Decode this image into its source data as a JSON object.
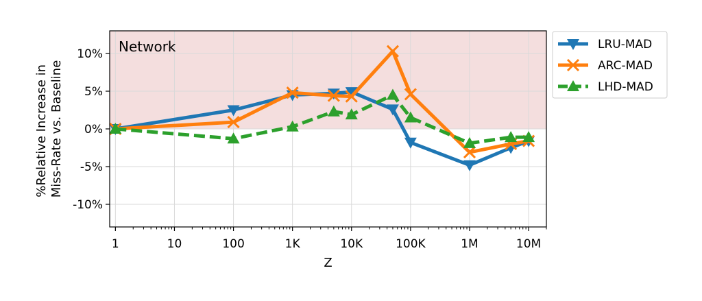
{
  "chart_data": {
    "type": "line",
    "xlabel": "Z",
    "ylabel_lines": [
      "%Relative Increase in",
      "Miss-Rate vs. Baseline"
    ],
    "annotation": "Network",
    "x_scale": "log",
    "xlim": [
      0.8,
      20000000
    ],
    "ylim": [
      -13,
      13
    ],
    "x_ticks": [
      1,
      10,
      100,
      1000,
      10000,
      100000,
      1000000,
      10000000
    ],
    "x_tick_labels": [
      "1",
      "10",
      "100",
      "1K",
      "10K",
      "100K",
      "1M",
      "10M"
    ],
    "y_ticks": [
      10,
      5,
      0,
      -5,
      -10
    ],
    "y_tick_labels": [
      "10%",
      "5%",
      "0%",
      "-5%",
      "-10%"
    ],
    "grid": true,
    "shaded_region": {
      "from": 0,
      "to": 13,
      "color": "#f4dede"
    },
    "legend_position": "outside-right",
    "series": [
      {
        "name": "LRU-MAD",
        "color": "#1f77b4",
        "marker": "triangle-down",
        "dashed": false,
        "x": [
          1,
          100,
          1000,
          5000,
          10000,
          50000,
          100000,
          1000000,
          5000000,
          10000000
        ],
        "y": [
          0.0,
          2.5,
          4.5,
          4.7,
          4.9,
          2.6,
          -1.8,
          -4.8,
          -2.5,
          -1.6
        ]
      },
      {
        "name": "ARC-MAD",
        "color": "#ff7f0e",
        "marker": "x",
        "dashed": false,
        "x": [
          1,
          100,
          1000,
          5000,
          10000,
          50000,
          100000,
          1000000,
          5000000,
          10000000
        ],
        "y": [
          0.0,
          0.9,
          4.8,
          4.4,
          4.3,
          10.3,
          4.6,
          -3.1,
          -2.0,
          -1.6
        ]
      },
      {
        "name": "LHD-MAD",
        "color": "#2ca02c",
        "marker": "triangle-up",
        "dashed": true,
        "x": [
          1,
          100,
          1000,
          5000,
          10000,
          50000,
          100000,
          1000000,
          5000000,
          10000000
        ],
        "y": [
          0.0,
          -1.3,
          0.3,
          2.3,
          1.9,
          4.5,
          1.5,
          -1.9,
          -1.1,
          -1.1
        ]
      }
    ]
  }
}
